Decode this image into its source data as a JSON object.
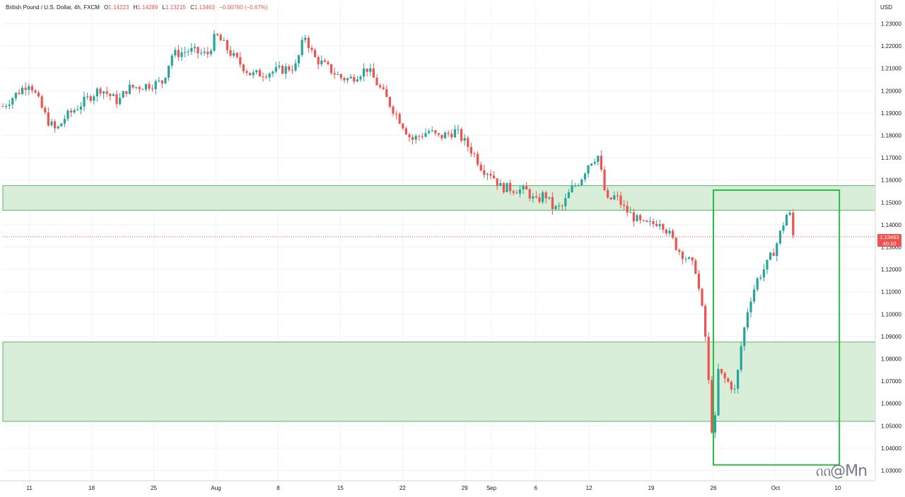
{
  "header": {
    "symbol_line": "British Pound / U.S. Dollar, 4h, FXCM",
    "open_key": "O",
    "open": "1.14223",
    "high_key": "H",
    "high": "1.14289",
    "low_key": "L",
    "low": "1.13215",
    "close_key": "C",
    "close": "1.13463",
    "change": "−0.00760 (−0.67%)"
  },
  "currency": "USD",
  "last_price_tag": {
    "price": "1.13463",
    "countdown": "40:10",
    "color": "#ef5350"
  },
  "watermark": "ᦶ@Mn",
  "chart_data": {
    "type": "candlestick",
    "title": "British Pound / U.S. Dollar, 4h, FXCM",
    "ylim": [
      1.027,
      1.238
    ],
    "y_ticks": [
      "1.23000",
      "1.22000",
      "1.21000",
      "1.20000",
      "1.19000",
      "1.18000",
      "1.17000",
      "1.16000",
      "1.15000",
      "1.14000",
      "1.13000",
      "1.12000",
      "1.11000",
      "1.10000",
      "1.09000",
      "1.08000",
      "1.07000",
      "1.06000",
      "1.05000",
      "1.04000",
      "1.03000"
    ],
    "x_ticks": [
      "11",
      "18",
      "25",
      "Aug",
      "8",
      "15",
      "22",
      "29",
      "Sep",
      "6",
      "12",
      "19",
      "26",
      "Oct",
      "10"
    ],
    "x_tick_dates": [
      "2022-07-11",
      "2022-07-18",
      "2022-07-25",
      "2022-08-01",
      "2022-08-08",
      "2022-08-15",
      "2022-08-22",
      "2022-08-29",
      "2022-09-01",
      "2022-09-06",
      "2022-09-12",
      "2022-09-19",
      "2022-09-26",
      "2022-10-03",
      "2022-10-10"
    ],
    "x_range": [
      "2022-07-08",
      "2022-10-12"
    ],
    "up_color": "#26a69a",
    "down_color": "#ef5350",
    "zones": [
      {
        "from": 1.1465,
        "to": 1.1575,
        "color": "#d8eed8",
        "border": "#5fb36d"
      },
      {
        "from": 1.052,
        "to": 1.0875,
        "color": "#d8eed8",
        "border": "#5fb36d"
      }
    ],
    "highlight_box": {
      "x_start": "2022-09-26",
      "x_end": "2022-10-07",
      "y_low": 1.0325,
      "y_high": 1.1555,
      "color": "#2eb84a"
    },
    "close_path": [
      [
        "2022-07-08",
        1.193
      ],
      [
        "2022-07-11",
        1.204
      ],
      [
        "2022-07-13",
        1.187
      ],
      [
        "2022-07-14",
        1.182
      ],
      [
        "2022-07-15",
        1.188
      ],
      [
        "2022-07-18",
        1.198
      ],
      [
        "2022-07-19",
        1.201
      ],
      [
        "2022-07-21",
        1.195
      ],
      [
        "2022-07-22",
        1.201
      ],
      [
        "2022-07-25",
        1.203
      ],
      [
        "2022-07-26",
        1.204
      ],
      [
        "2022-07-27",
        1.216
      ],
      [
        "2022-07-29",
        1.218
      ],
      [
        "2022-07-31",
        1.216
      ],
      [
        "2022-08-01",
        1.225
      ],
      [
        "2022-08-03",
        1.215
      ],
      [
        "2022-08-05",
        1.207
      ],
      [
        "2022-08-08",
        1.209
      ],
      [
        "2022-08-10",
        1.211
      ],
      [
        "2022-08-11",
        1.225
      ],
      [
        "2022-08-12",
        1.215
      ],
      [
        "2022-08-15",
        1.206
      ],
      [
        "2022-08-16",
        1.205
      ],
      [
        "2022-08-18",
        1.21
      ],
      [
        "2022-08-19",
        1.204
      ],
      [
        "2022-08-22",
        1.185
      ],
      [
        "2022-08-23",
        1.178
      ],
      [
        "2022-08-25",
        1.182
      ],
      [
        "2022-08-26",
        1.179
      ],
      [
        "2022-08-28",
        1.182
      ],
      [
        "2022-08-30",
        1.172
      ],
      [
        "2022-08-31",
        1.165
      ],
      [
        "2022-09-01",
        1.163
      ],
      [
        "2022-09-02",
        1.157
      ],
      [
        "2022-09-05",
        1.155
      ],
      [
        "2022-09-06",
        1.15
      ],
      [
        "2022-09-07",
        1.154
      ],
      [
        "2022-09-08",
        1.147
      ],
      [
        "2022-09-09",
        1.148
      ],
      [
        "2022-09-10",
        1.156
      ],
      [
        "2022-09-11",
        1.16
      ],
      [
        "2022-09-12",
        1.168
      ],
      [
        "2022-09-13",
        1.171
      ],
      [
        "2022-09-14",
        1.15
      ],
      [
        "2022-09-15",
        1.153
      ],
      [
        "2022-09-16",
        1.147
      ],
      [
        "2022-09-18",
        1.14
      ],
      [
        "2022-09-19",
        1.14
      ],
      [
        "2022-09-20",
        1.142
      ],
      [
        "2022-09-21",
        1.136
      ],
      [
        "2022-09-22",
        1.129
      ],
      [
        "2022-09-23",
        1.125
      ],
      [
        "2022-09-24",
        1.12
      ],
      [
        "2022-09-25",
        1.095
      ],
      [
        "2022-09-26",
        1.039
      ],
      [
        "2022-09-26T12",
        1.075
      ],
      [
        "2022-09-27",
        1.072
      ],
      [
        "2022-09-28",
        1.068
      ],
      [
        "2022-09-28T12",
        1.065
      ],
      [
        "2022-09-29",
        1.083
      ],
      [
        "2022-09-30",
        1.105
      ],
      [
        "2022-10-01",
        1.116
      ],
      [
        "2022-10-02",
        1.122
      ],
      [
        "2022-10-03",
        1.13
      ],
      [
        "2022-10-04",
        1.142
      ],
      [
        "2022-10-04T12",
        1.147
      ],
      [
        "2022-10-05",
        1.1346
      ]
    ]
  }
}
